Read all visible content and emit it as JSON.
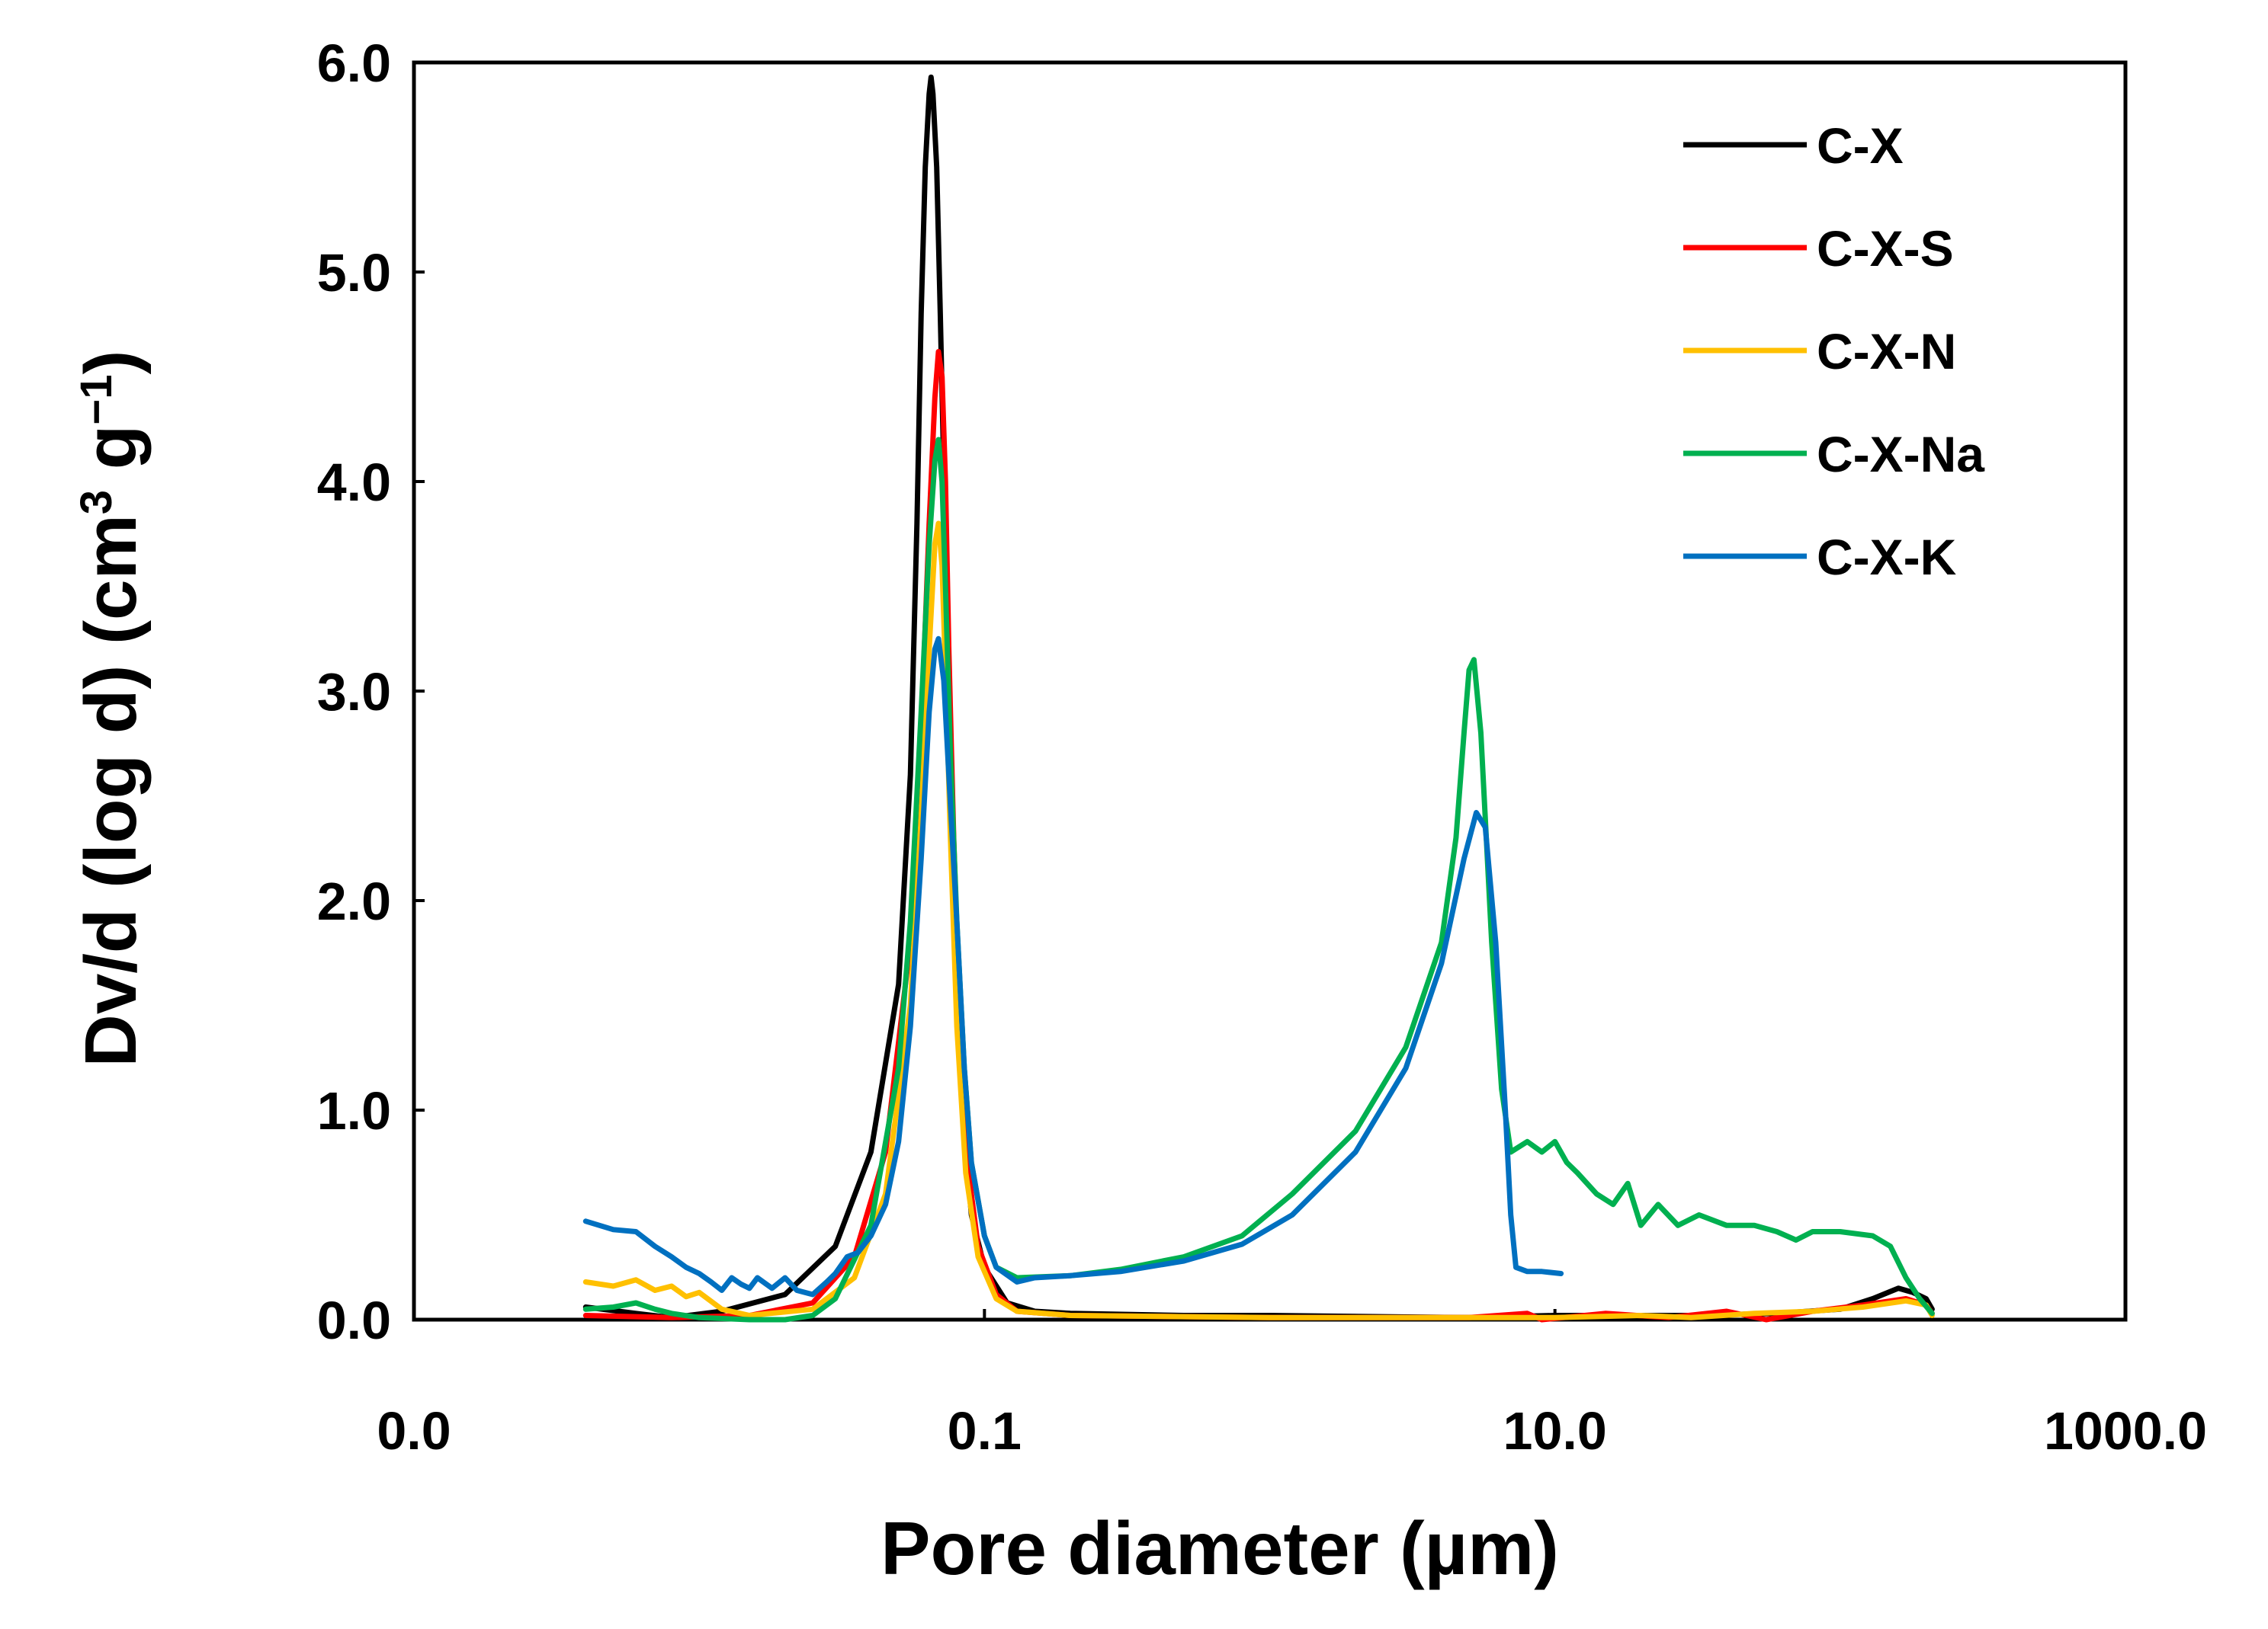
{
  "chart_data": {
    "type": "line",
    "title": "",
    "xlabel": "Pore diameter (µm)",
    "ylabel": {
      "main": "Dv/d (log d) (cm",
      "sup1": "3",
      "mid": " g",
      "sup2": "−1",
      "end": ")"
    },
    "x_scale": "log",
    "xlim": [
      0.001,
      1000
    ],
    "ylim": [
      0,
      6.0
    ],
    "x_ticks": [
      {
        "value": 0.001,
        "label": "0.0"
      },
      {
        "value": 0.1,
        "label": "0.1"
      },
      {
        "value": 10,
        "label": "10.0"
      },
      {
        "value": 1000,
        "label": "1000.0"
      }
    ],
    "y_ticks": [
      {
        "value": 0,
        "label": "0.0"
      },
      {
        "value": 1,
        "label": "1.0"
      },
      {
        "value": 2,
        "label": "2.0"
      },
      {
        "value": 3,
        "label": "3.0"
      },
      {
        "value": 4,
        "label": "4.0"
      },
      {
        "value": 5,
        "label": "5.0"
      },
      {
        "value": 6,
        "label": "6.0"
      }
    ],
    "legend_position": "top-right",
    "series": [
      {
        "name": "C-X",
        "color": "#000000",
        "points": [
          [
            0.004,
            0.06
          ],
          [
            0.006,
            0.03
          ],
          [
            0.008,
            0.01
          ],
          [
            0.012,
            0.04
          ],
          [
            0.02,
            0.12
          ],
          [
            0.03,
            0.35
          ],
          [
            0.04,
            0.8
          ],
          [
            0.05,
            1.6
          ],
          [
            0.055,
            2.6
          ],
          [
            0.058,
            3.8
          ],
          [
            0.06,
            4.8
          ],
          [
            0.062,
            5.5
          ],
          [
            0.064,
            5.85
          ],
          [
            0.065,
            5.93
          ],
          [
            0.066,
            5.85
          ],
          [
            0.068,
            5.5
          ],
          [
            0.07,
            4.8
          ],
          [
            0.073,
            3.7
          ],
          [
            0.076,
            2.6
          ],
          [
            0.08,
            1.6
          ],
          [
            0.085,
            0.9
          ],
          [
            0.09,
            0.5
          ],
          [
            0.1,
            0.25
          ],
          [
            0.12,
            0.08
          ],
          [
            0.15,
            0.04
          ],
          [
            0.2,
            0.03
          ],
          [
            0.5,
            0.02
          ],
          [
            1,
            0.02
          ],
          [
            5,
            0.01
          ],
          [
            10,
            0.02
          ],
          [
            30,
            0.02
          ],
          [
            60,
            0.03
          ],
          [
            100,
            0.05
          ],
          [
            130,
            0.1
          ],
          [
            160,
            0.15
          ],
          [
            180,
            0.13
          ],
          [
            200,
            0.1
          ],
          [
            210,
            0.05
          ]
        ]
      },
      {
        "name": "C-X-S",
        "color": "#ff0000",
        "points": [
          [
            0.004,
            0.02
          ],
          [
            0.008,
            0.01
          ],
          [
            0.015,
            0.02
          ],
          [
            0.025,
            0.08
          ],
          [
            0.035,
            0.3
          ],
          [
            0.045,
            0.8
          ],
          [
            0.055,
            1.8
          ],
          [
            0.06,
            2.8
          ],
          [
            0.064,
            3.8
          ],
          [
            0.067,
            4.4
          ],
          [
            0.069,
            4.62
          ],
          [
            0.071,
            4.5
          ],
          [
            0.073,
            4.0
          ],
          [
            0.075,
            3.2
          ],
          [
            0.078,
            2.3
          ],
          [
            0.082,
            1.4
          ],
          [
            0.088,
            0.7
          ],
          [
            0.095,
            0.35
          ],
          [
            0.11,
            0.12
          ],
          [
            0.13,
            0.04
          ],
          [
            0.2,
            0.02
          ],
          [
            1,
            0.01
          ],
          [
            5,
            0.01
          ],
          [
            8,
            0.03
          ],
          [
            9,
            0.0
          ],
          [
            15,
            0.03
          ],
          [
            25,
            0.01
          ],
          [
            40,
            0.04
          ],
          [
            55,
            0.0
          ],
          [
            80,
            0.04
          ],
          [
            120,
            0.07
          ],
          [
            170,
            0.1
          ],
          [
            200,
            0.07
          ],
          [
            210,
            0.03
          ]
        ]
      },
      {
        "name": "C-X-N",
        "color": "#ffc000",
        "points": [
          [
            0.004,
            0.18
          ],
          [
            0.005,
            0.16
          ],
          [
            0.006,
            0.19
          ],
          [
            0.007,
            0.14
          ],
          [
            0.008,
            0.16
          ],
          [
            0.009,
            0.11
          ],
          [
            0.01,
            0.13
          ],
          [
            0.012,
            0.05
          ],
          [
            0.015,
            0.02
          ],
          [
            0.025,
            0.05
          ],
          [
            0.035,
            0.2
          ],
          [
            0.045,
            0.6
          ],
          [
            0.055,
            1.5
          ],
          [
            0.06,
            2.4
          ],
          [
            0.064,
            3.2
          ],
          [
            0.067,
            3.7
          ],
          [
            0.069,
            3.8
          ],
          [
            0.071,
            3.6
          ],
          [
            0.073,
            3.1
          ],
          [
            0.076,
            2.3
          ],
          [
            0.08,
            1.4
          ],
          [
            0.086,
            0.7
          ],
          [
            0.095,
            0.3
          ],
          [
            0.11,
            0.1
          ],
          [
            0.13,
            0.04
          ],
          [
            0.2,
            0.02
          ],
          [
            1,
            0.01
          ],
          [
            10,
            0.01
          ],
          [
            20,
            0.02
          ],
          [
            30,
            0.01
          ],
          [
            50,
            0.03
          ],
          [
            80,
            0.04
          ],
          [
            120,
            0.06
          ],
          [
            170,
            0.09
          ],
          [
            200,
            0.07
          ],
          [
            210,
            0.02
          ]
        ]
      },
      {
        "name": "C-X-Na",
        "color": "#00b050",
        "points": [
          [
            0.004,
            0.05
          ],
          [
            0.005,
            0.06
          ],
          [
            0.006,
            0.08
          ],
          [
            0.007,
            0.05
          ],
          [
            0.008,
            0.03
          ],
          [
            0.01,
            0.01
          ],
          [
            0.015,
            0.0
          ],
          [
            0.02,
            0.0
          ],
          [
            0.025,
            0.02
          ],
          [
            0.03,
            0.1
          ],
          [
            0.04,
            0.45
          ],
          [
            0.05,
            1.2
          ],
          [
            0.055,
            1.9
          ],
          [
            0.06,
            2.9
          ],
          [
            0.064,
            3.7
          ],
          [
            0.067,
            4.1
          ],
          [
            0.069,
            4.2
          ],
          [
            0.071,
            4.0
          ],
          [
            0.073,
            3.5
          ],
          [
            0.076,
            2.7
          ],
          [
            0.08,
            1.9
          ],
          [
            0.085,
            1.2
          ],
          [
            0.09,
            0.75
          ],
          [
            0.1,
            0.4
          ],
          [
            0.11,
            0.25
          ],
          [
            0.13,
            0.2
          ],
          [
            0.2,
            0.21
          ],
          [
            0.3,
            0.24
          ],
          [
            0.5,
            0.3
          ],
          [
            0.8,
            0.4
          ],
          [
            1.2,
            0.6
          ],
          [
            2,
            0.9
          ],
          [
            3,
            1.3
          ],
          [
            4,
            1.8
          ],
          [
            4.5,
            2.3
          ],
          [
            4.8,
            2.8
          ],
          [
            5,
            3.1
          ],
          [
            5.2,
            3.15
          ],
          [
            5.5,
            2.8
          ],
          [
            6,
            1.8
          ],
          [
            6.5,
            1.1
          ],
          [
            7,
            0.8
          ],
          [
            8,
            0.85
          ],
          [
            9,
            0.8
          ],
          [
            10,
            0.85
          ],
          [
            11,
            0.75
          ],
          [
            12,
            0.7
          ],
          [
            14,
            0.6
          ],
          [
            16,
            0.55
          ],
          [
            18,
            0.65
          ],
          [
            20,
            0.45
          ],
          [
            23,
            0.55
          ],
          [
            27,
            0.45
          ],
          [
            32,
            0.5
          ],
          [
            40,
            0.45
          ],
          [
            50,
            0.45
          ],
          [
            60,
            0.42
          ],
          [
            70,
            0.38
          ],
          [
            80,
            0.42
          ],
          [
            100,
            0.42
          ],
          [
            130,
            0.4
          ],
          [
            150,
            0.35
          ],
          [
            170,
            0.2
          ],
          [
            190,
            0.1
          ],
          [
            210,
            0.03
          ]
        ]
      },
      {
        "name": "C-X-K",
        "color": "#0070c0",
        "points": [
          [
            0.004,
            0.47
          ],
          [
            0.005,
            0.43
          ],
          [
            0.006,
            0.42
          ],
          [
            0.007,
            0.35
          ],
          [
            0.008,
            0.3
          ],
          [
            0.009,
            0.25
          ],
          [
            0.01,
            0.22
          ],
          [
            0.011,
            0.18
          ],
          [
            0.012,
            0.14
          ],
          [
            0.013,
            0.2
          ],
          [
            0.014,
            0.17
          ],
          [
            0.015,
            0.15
          ],
          [
            0.016,
            0.2
          ],
          [
            0.018,
            0.15
          ],
          [
            0.02,
            0.2
          ],
          [
            0.022,
            0.14
          ],
          [
            0.025,
            0.12
          ],
          [
            0.028,
            0.18
          ],
          [
            0.03,
            0.22
          ],
          [
            0.033,
            0.3
          ],
          [
            0.036,
            0.32
          ],
          [
            0.04,
            0.4
          ],
          [
            0.045,
            0.55
          ],
          [
            0.05,
            0.85
          ],
          [
            0.055,
            1.4
          ],
          [
            0.06,
            2.2
          ],
          [
            0.064,
            2.9
          ],
          [
            0.067,
            3.2
          ],
          [
            0.069,
            3.25
          ],
          [
            0.072,
            3.05
          ],
          [
            0.075,
            2.6
          ],
          [
            0.08,
            1.9
          ],
          [
            0.085,
            1.2
          ],
          [
            0.09,
            0.75
          ],
          [
            0.1,
            0.4
          ],
          [
            0.11,
            0.25
          ],
          [
            0.13,
            0.18
          ],
          [
            0.15,
            0.2
          ],
          [
            0.2,
            0.21
          ],
          [
            0.3,
            0.23
          ],
          [
            0.5,
            0.28
          ],
          [
            0.8,
            0.36
          ],
          [
            1.2,
            0.5
          ],
          [
            2,
            0.8
          ],
          [
            3,
            1.2
          ],
          [
            4,
            1.7
          ],
          [
            4.8,
            2.2
          ],
          [
            5.3,
            2.42
          ],
          [
            5.7,
            2.35
          ],
          [
            6.2,
            1.8
          ],
          [
            6.7,
            1.0
          ],
          [
            7,
            0.5
          ],
          [
            7.3,
            0.25
          ],
          [
            8,
            0.23
          ],
          [
            9,
            0.23
          ],
          [
            10.5,
            0.22
          ]
        ]
      }
    ]
  }
}
